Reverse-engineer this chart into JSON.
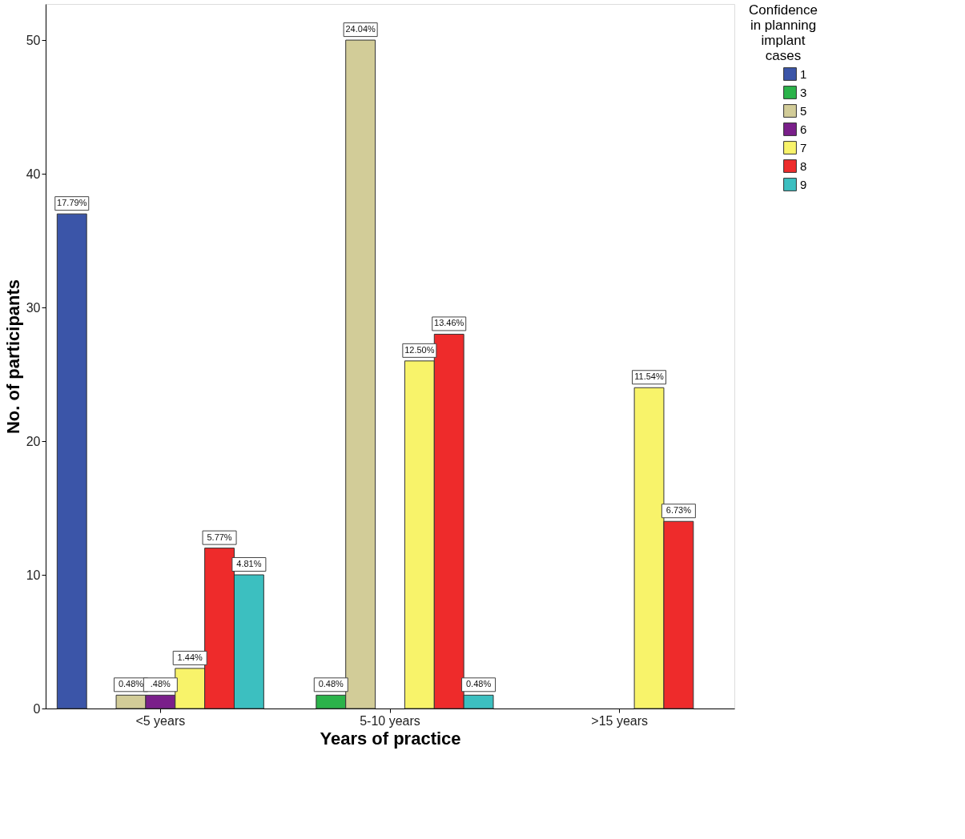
{
  "chart_data": {
    "type": "bar",
    "xlabel": "Years of practice",
    "ylabel": "No. of participants",
    "legend_title": "Confidence in planning implant cases",
    "legend": "right",
    "grid": false,
    "categories": [
      "<5 years",
      "5-10 years",
      ">15 years"
    ],
    "ylim": [
      0,
      52.7
    ],
    "yticks": [
      0,
      10,
      20,
      30,
      40,
      50
    ],
    "series": [
      {
        "name": "1",
        "color": "#3b55a8",
        "values": [
          37,
          null,
          null
        ]
      },
      {
        "name": "3",
        "color": "#2bb34a",
        "values": [
          null,
          1,
          null
        ]
      },
      {
        "name": "5",
        "color": "#d2cc98",
        "values": [
          1,
          50,
          null
        ]
      },
      {
        "name": "6",
        "color": "#7a1f8a",
        "values": [
          1,
          null,
          null
        ]
      },
      {
        "name": "7",
        "color": "#f8f36a",
        "values": [
          3,
          26,
          24
        ]
      },
      {
        "name": "8",
        "color": "#ee2b2b",
        "values": [
          12,
          28,
          14
        ]
      },
      {
        "name": "9",
        "color": "#3cbfc0",
        "values": [
          10,
          1,
          null
        ]
      }
    ],
    "annotations": [
      "17.79%",
      "0.48%",
      ".48%",
      "1.44%",
      "5.77%",
      "4.81%",
      "0.48%",
      "24.04%",
      "12.50%",
      "13.46%",
      "0.48%",
      "11.54%",
      "6.73%"
    ]
  }
}
